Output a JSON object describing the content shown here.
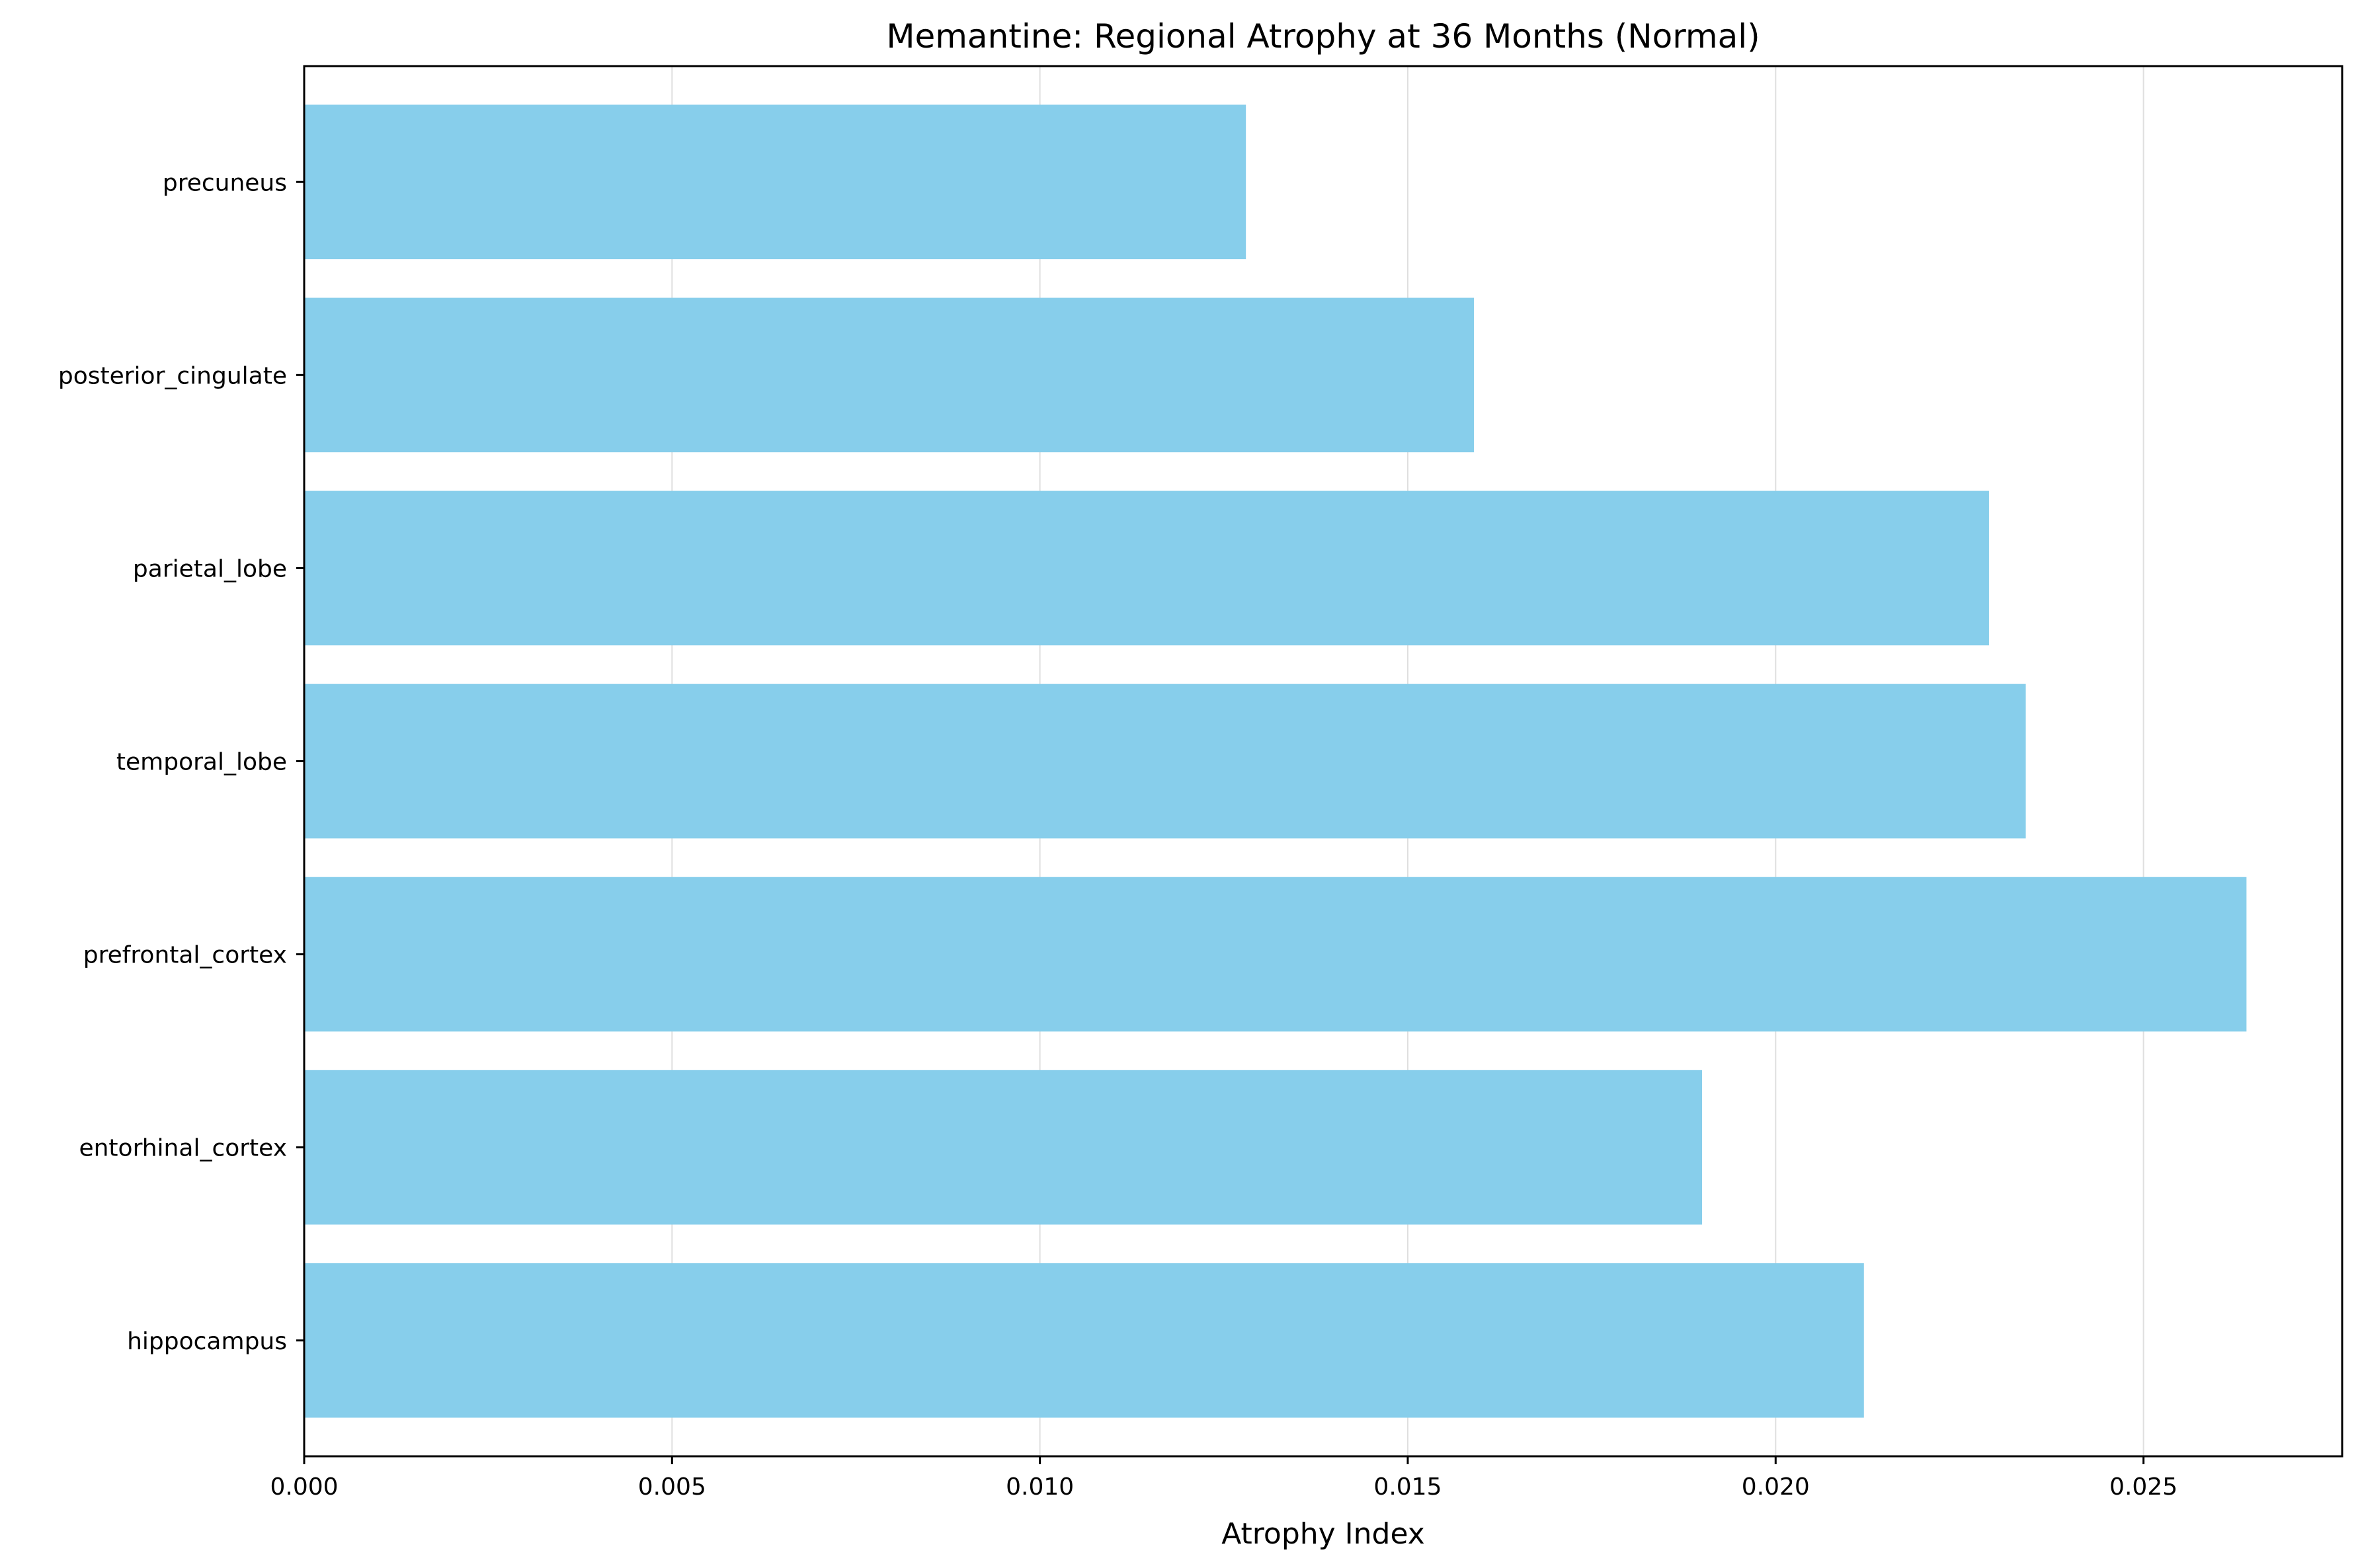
{
  "chart_data": {
    "type": "bar",
    "orientation": "horizontal",
    "title": "Memantine: Regional Atrophy at 36 Months (Normal)",
    "xlabel": "Atrophy Index",
    "ylabel": "",
    "categories": [
      "hippocampus",
      "entorhinal_cortex",
      "prefrontal_cortex",
      "temporal_lobe",
      "parietal_lobe",
      "posterior_cingulate",
      "precuneus"
    ],
    "values": [
      0.0212,
      0.019,
      0.0264,
      0.0234,
      0.0229,
      0.0159,
      0.0128
    ],
    "xlim": [
      0,
      0.0277
    ],
    "xticks": [
      "0.000",
      "0.005",
      "0.010",
      "0.015",
      "0.020",
      "0.025"
    ],
    "xtick_values": [
      0,
      0.005,
      0.01,
      0.015,
      0.02,
      0.025
    ],
    "bar_color": "#87ceeb",
    "grid": "x-only",
    "legend": "none"
  }
}
